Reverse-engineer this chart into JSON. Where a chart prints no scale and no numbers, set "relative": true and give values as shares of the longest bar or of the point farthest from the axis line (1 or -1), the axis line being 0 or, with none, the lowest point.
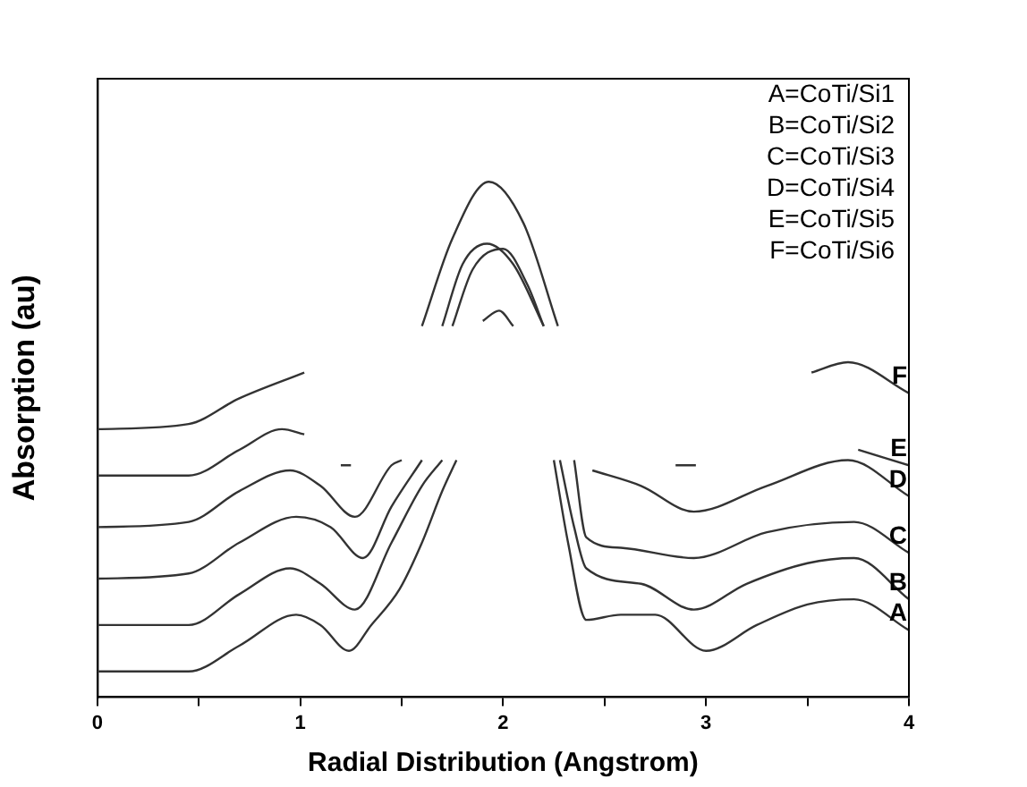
{
  "chart_data": {
    "type": "line",
    "relative": true,
    "xlabel": "Radial Distribution (Angstrom)",
    "ylabel": "Absorption (au)",
    "xlim": [
      0,
      4
    ],
    "xticks": [
      0,
      {
        "value": 0.5,
        "label": null
      },
      1,
      {
        "value": 1.5,
        "label": null
      },
      2,
      {
        "value": 2.5,
        "label": null
      },
      3,
      {
        "value": 3.5,
        "label": null
      },
      4
    ],
    "grid": false,
    "legend": false,
    "marker": "none",
    "line_style": "solid",
    "annotations": [
      "A=CoTi/Si1",
      "B=CoTi/Si2",
      "C=CoTi/Si3",
      "D=CoTi/Si4",
      "E=CoTi/Si5",
      "F=CoTi/Si6"
    ],
    "series": [
      {
        "name": "A",
        "color": "#333333",
        "x": [
          0,
          0.45,
          0.7,
          0.98,
          1.1,
          1.24,
          1.35,
          1.49,
          1.6,
          1.7,
          1.77,
          2.0,
          2.25,
          2.32,
          2.41,
          2.58,
          2.75,
          3.0,
          3.25,
          3.5,
          3.73,
          4.0
        ],
        "values": [
          0.05,
          0.05,
          0.1,
          0.16,
          0.14,
          0.09,
          0.14,
          0.21,
          0.3,
          0.4,
          0.46,
          null,
          0.46,
          0.3,
          0.15,
          0.16,
          0.16,
          0.09,
          0.14,
          0.18,
          0.19,
          0.13
        ]
      },
      {
        "name": "B",
        "color": "#333333",
        "x": [
          0,
          0.45,
          0.7,
          0.95,
          1.1,
          1.27,
          1.45,
          1.6,
          1.7,
          2.0,
          2.28,
          2.35,
          2.41,
          2.68,
          2.94,
          3.2,
          3.5,
          3.73,
          4.0
        ],
        "values": [
          0.14,
          0.14,
          0.2,
          0.25,
          0.22,
          0.17,
          0.3,
          0.41,
          0.46,
          null,
          0.46,
          0.33,
          0.25,
          0.22,
          0.17,
          0.22,
          0.26,
          0.27,
          0.19
        ]
      },
      {
        "name": "C",
        "color": "#333333",
        "x": [
          0,
          0.45,
          0.7,
          0.98,
          1.15,
          1.31,
          1.45,
          1.6,
          1.75,
          1.9,
          1.98,
          2.05,
          2.2,
          2.35,
          2.41,
          2.58,
          2.94,
          3.3,
          3.73,
          4.0
        ],
        "values": [
          0.23,
          0.24,
          0.3,
          0.35,
          0.33,
          0.27,
          0.37,
          0.46,
          null,
          0.73,
          0.75,
          0.72,
          null,
          0.46,
          0.31,
          0.29,
          0.27,
          0.32,
          0.34,
          0.28
        ]
      },
      {
        "name": "D",
        "color": "#333333",
        "x": [
          0,
          0.45,
          0.7,
          0.95,
          1.1,
          1.27,
          1.45,
          1.5,
          1.6,
          1.75,
          1.85,
          2.0,
          2.12,
          2.2,
          2.3,
          2.44,
          2.68,
          2.94,
          3.3,
          3.7,
          4.0
        ],
        "values": [
          0.33,
          0.34,
          0.4,
          0.44,
          0.41,
          0.35,
          0.45,
          0.46,
          null,
          0.72,
          0.83,
          0.87,
          0.8,
          0.72,
          null,
          0.44,
          0.41,
          0.36,
          0.41,
          0.46,
          0.39
        ]
      },
      {
        "name": "E",
        "color": "#333333",
        "x": [
          0,
          0.45,
          0.7,
          0.91,
          1.02,
          1.1,
          1.2,
          1.25,
          1.4,
          1.7,
          1.8,
          1.92,
          2.05,
          2.2,
          2.6,
          2.85,
          2.95,
          3.2,
          3.75,
          4.0
        ],
        "values": [
          0.43,
          0.43,
          0.48,
          0.52,
          0.51,
          null,
          0.45,
          0.45,
          null,
          0.72,
          0.84,
          0.88,
          0.84,
          0.72,
          null,
          0.45,
          0.45,
          null,
          0.48,
          0.45
        ]
      },
      {
        "name": "F",
        "color": "#333333",
        "x": [
          0,
          0.45,
          0.7,
          1.02,
          1.2,
          1.6,
          1.75,
          1.93,
          2.1,
          2.27,
          3.0,
          3.52,
          3.7,
          4.0
        ],
        "values": [
          0.52,
          0.53,
          0.58,
          0.63,
          null,
          0.72,
          0.89,
          1.0,
          0.92,
          0.72,
          null,
          0.63,
          0.65,
          0.59
        ]
      }
    ]
  }
}
